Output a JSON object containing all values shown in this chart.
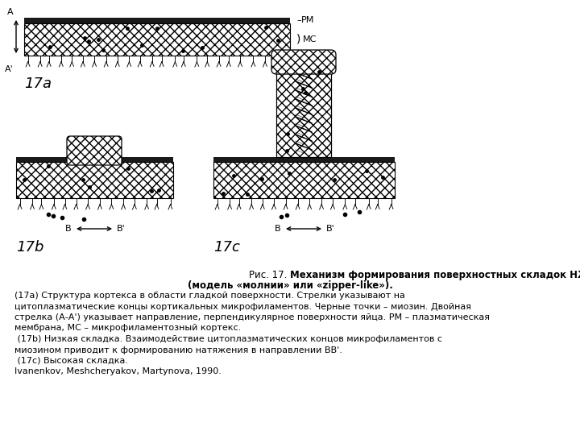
{
  "bg_color": "#ffffff",
  "title_bold": "Механизм формирования поверхностных складок НЖСС зародышей вьюна",
  "title_prefix": "Рис. 17. ",
  "title_line2": "(модель «молнии» или «zipper-like»).",
  "caption_lines": [
    "(17a) Структура кортекса в области гладкой поверхности. Стрелки указывают на",
    "цитоплазматические концы кортикальных микрофиламентов. Черные точки – миозин. Двойная",
    "стрелка (А-А') указывает направление, перпендикулярное поверхности яйца. РМ – плазматическая",
    "мембрана, МС – микрофиламентозный кортекс.",
    " (17b) Низкая складка. Взаимодействие цитоплазматических концов микрофиламентов с",
    "миозином приводит к формированию натяжения в направлении ВВ'.",
    " (17c) Высокая складка.",
    "Ivanenkov, Meshcheryakov, Martynova, 1990."
  ],
  "label_17a": "17a",
  "label_17b": "17b",
  "label_17c": "17c",
  "label_PM": "РМ",
  "label_MC": "МС"
}
